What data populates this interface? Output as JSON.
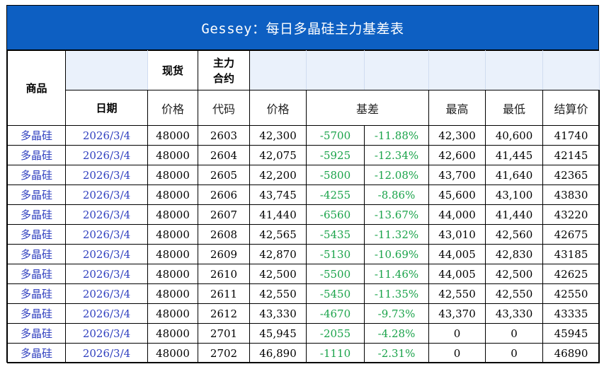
{
  "title": "Gessey：每日多晶硅主力基差表",
  "headers": {
    "product": "商品",
    "spot": "现货",
    "main_contract_line1": "主力",
    "main_contract_line2": "合约",
    "date": "日期",
    "price": "价格",
    "code": "代码",
    "futures_price": "价格",
    "basis": "基差",
    "high": "最高",
    "low": "最低",
    "settle": "结算价"
  },
  "rows": [
    {
      "product": "多晶硅",
      "date": "2026/3/4",
      "spot": "48000",
      "code": "2603",
      "price": "42,300",
      "basis": "-5700",
      "basis_pct": "-11.88%",
      "high": "42,300",
      "low": "40,600",
      "settle": "41740"
    },
    {
      "product": "多晶硅",
      "date": "2026/3/4",
      "spot": "48000",
      "code": "2604",
      "price": "42,075",
      "basis": "-5925",
      "basis_pct": "-12.34%",
      "high": "42,600",
      "low": "41,445",
      "settle": "42145"
    },
    {
      "product": "多晶硅",
      "date": "2026/3/4",
      "spot": "48000",
      "code": "2605",
      "price": "42,200",
      "basis": "-5800",
      "basis_pct": "-12.08%",
      "high": "43,700",
      "low": "41,640",
      "settle": "42365"
    },
    {
      "product": "多晶硅",
      "date": "2026/3/4",
      "spot": "48000",
      "code": "2606",
      "price": "43,745",
      "basis": "-4255",
      "basis_pct": "-8.86%",
      "high": "45,600",
      "low": "43,100",
      "settle": "43830"
    },
    {
      "product": "多晶硅",
      "date": "2026/3/4",
      "spot": "48000",
      "code": "2607",
      "price": "41,440",
      "basis": "-6560",
      "basis_pct": "-13.67%",
      "high": "44,000",
      "low": "41,440",
      "settle": "43220"
    },
    {
      "product": "多晶硅",
      "date": "2026/3/4",
      "spot": "48000",
      "code": "2608",
      "price": "42,565",
      "basis": "-5435",
      "basis_pct": "-11.32%",
      "high": "43,010",
      "low": "42,560",
      "settle": "42675"
    },
    {
      "product": "多晶硅",
      "date": "2026/3/4",
      "spot": "48000",
      "code": "2609",
      "price": "42,870",
      "basis": "-5130",
      "basis_pct": "-10.69%",
      "high": "44,005",
      "low": "42,830",
      "settle": "43185"
    },
    {
      "product": "多晶硅",
      "date": "2026/3/4",
      "spot": "48000",
      "code": "2610",
      "price": "42,500",
      "basis": "-5500",
      "basis_pct": "-11.46%",
      "high": "44,005",
      "low": "42,500",
      "settle": "42625"
    },
    {
      "product": "多晶硅",
      "date": "2026/3/4",
      "spot": "48000",
      "code": "2611",
      "price": "42,550",
      "basis": "-5450",
      "basis_pct": "-11.35%",
      "high": "42,550",
      "low": "42,550",
      "settle": "42550"
    },
    {
      "product": "多晶硅",
      "date": "2026/3/4",
      "spot": "48000",
      "code": "2612",
      "price": "43,330",
      "basis": "-4670",
      "basis_pct": "-9.73%",
      "high": "43,370",
      "low": "43,330",
      "settle": "43335"
    },
    {
      "product": "多晶硅",
      "date": "2026/3/4",
      "spot": "48000",
      "code": "2701",
      "price": "45,945",
      "basis": "-2055",
      "basis_pct": "-4.28%",
      "high": "0",
      "low": "0",
      "settle": "45945"
    },
    {
      "product": "多晶硅",
      "date": "2026/3/4",
      "spot": "48000",
      "code": "2702",
      "price": "46,890",
      "basis": "-1110",
      "basis_pct": "-2.31%",
      "high": "0",
      "low": "0",
      "settle": "46890"
    }
  ]
}
